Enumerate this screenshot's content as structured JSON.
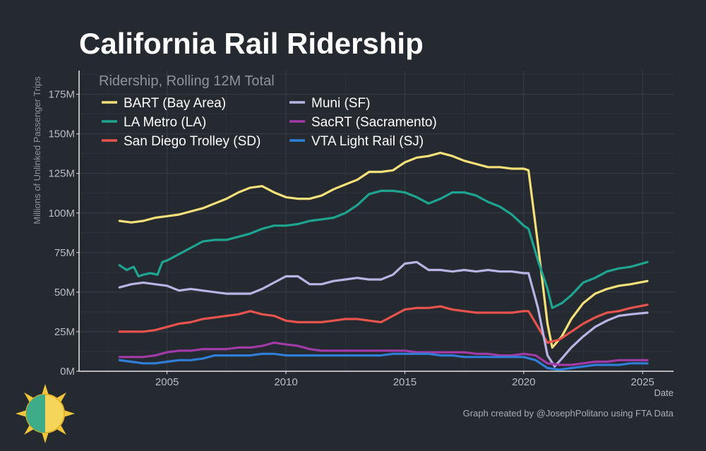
{
  "header": {
    "title": "California Rail Ridership"
  },
  "footer": {
    "credit": "Graph created by @JosephPolitano using FTA Data"
  },
  "colors": {
    "background": "#252930",
    "grid": "#3a3f47",
    "axis_text": "#b9bdc3",
    "axis_line": "#e6e6e6"
  },
  "chart_data": {
    "type": "line",
    "title": "California Rail Ridership",
    "subtitle": "Ridership, Rolling 12M Total",
    "xlabel": "Date",
    "ylabel": "Millions of Unlinked Passenger Trips",
    "xlim": [
      2001.3,
      2026.3
    ],
    "ylim": [
      0,
      190
    ],
    "xticks": [
      2005,
      2010,
      2015,
      2020,
      2025
    ],
    "xtick_labels": [
      "2005",
      "2010",
      "2015",
      "2020",
      "2025"
    ],
    "yticks": [
      0,
      25,
      50,
      75,
      100,
      125,
      150,
      175
    ],
    "ytick_labels": [
      "0M",
      "25M",
      "50M",
      "75M",
      "100M",
      "125M",
      "150M",
      "175M"
    ],
    "grid": true,
    "legend_position": "top-left",
    "series": [
      {
        "name": "BART (Bay Area)",
        "color": "#f5e07a",
        "x": [
          2003.0,
          2003.5,
          2004.0,
          2004.5,
          2005.0,
          2005.5,
          2006.0,
          2006.5,
          2007.0,
          2007.5,
          2008.0,
          2008.5,
          2009.0,
          2009.5,
          2010.0,
          2010.5,
          2011.0,
          2011.5,
          2012.0,
          2012.5,
          2013.0,
          2013.5,
          2014.0,
          2014.5,
          2015.0,
          2015.5,
          2016.0,
          2016.5,
          2017.0,
          2017.5,
          2018.0,
          2018.5,
          2019.0,
          2019.5,
          2020.0,
          2020.2,
          2020.6,
          2021.0,
          2021.2,
          2021.6,
          2022.0,
          2022.5,
          2023.0,
          2023.5,
          2024.0,
          2024.5,
          2025.2
        ],
        "y": [
          95,
          94,
          95,
          97,
          98,
          99,
          101,
          103,
          106,
          109,
          113,
          116,
          117,
          113,
          110,
          109,
          109,
          111,
          115,
          118,
          121,
          126,
          126,
          127,
          132,
          135,
          136,
          138,
          136,
          133,
          131,
          129,
          129,
          128,
          128,
          127,
          80,
          30,
          15,
          22,
          33,
          43,
          49,
          52,
          54,
          55,
          57
        ]
      },
      {
        "name": "LA Metro (LA)",
        "color": "#1ea592",
        "x": [
          2003.0,
          2003.3,
          2003.6,
          2003.8,
          2004.0,
          2004.3,
          2004.6,
          2004.8,
          2005.0,
          2005.5,
          2006.0,
          2006.5,
          2007.0,
          2007.5,
          2008.0,
          2008.5,
          2009.0,
          2009.5,
          2010.0,
          2010.5,
          2011.0,
          2011.5,
          2012.0,
          2012.5,
          2013.0,
          2013.5,
          2014.0,
          2014.5,
          2015.0,
          2015.5,
          2016.0,
          2016.5,
          2017.0,
          2017.5,
          2018.0,
          2018.5,
          2019.0,
          2019.5,
          2020.0,
          2020.2,
          2020.6,
          2021.0,
          2021.2,
          2021.6,
          2022.0,
          2022.5,
          2023.0,
          2023.5,
          2024.0,
          2024.5,
          2025.2
        ],
        "y": [
          67,
          64,
          66,
          60,
          61,
          62,
          61,
          69,
          70,
          74,
          78,
          82,
          83,
          83,
          85,
          87,
          90,
          92,
          92,
          93,
          95,
          96,
          97,
          100,
          105,
          112,
          114,
          114,
          113,
          110,
          106,
          109,
          113,
          113,
          111,
          107,
          104,
          99,
          92,
          90,
          70,
          52,
          40,
          43,
          48,
          56,
          59,
          63,
          65,
          66,
          69
        ]
      },
      {
        "name": "San Diego Trolley (SD)",
        "color": "#e8534d",
        "x": [
          2003.0,
          2003.5,
          2004.0,
          2004.5,
          2005.0,
          2005.5,
          2006.0,
          2006.5,
          2007.0,
          2007.5,
          2008.0,
          2008.5,
          2009.0,
          2009.5,
          2010.0,
          2010.5,
          2011.0,
          2011.5,
          2012.0,
          2012.5,
          2013.0,
          2013.5,
          2014.0,
          2014.5,
          2015.0,
          2015.5,
          2016.0,
          2016.5,
          2017.0,
          2017.5,
          2018.0,
          2018.5,
          2019.0,
          2019.5,
          2020.0,
          2020.2,
          2020.6,
          2021.0,
          2021.5,
          2022.0,
          2022.5,
          2023.0,
          2023.5,
          2024.0,
          2024.5,
          2025.2
        ],
        "y": [
          25,
          25,
          25,
          26,
          28,
          30,
          31,
          33,
          34,
          35,
          36,
          38,
          36,
          35,
          32,
          31,
          31,
          31,
          32,
          33,
          33,
          32,
          31,
          35,
          39,
          40,
          40,
          41,
          39,
          38,
          37,
          37,
          37,
          37,
          38,
          38,
          28,
          18,
          20,
          25,
          30,
          34,
          37,
          38,
          40,
          42
        ]
      },
      {
        "name": "Muni (SF)",
        "color": "#b8b4e4",
        "x": [
          2003.0,
          2003.5,
          2004.0,
          2004.5,
          2005.0,
          2005.5,
          2006.0,
          2006.5,
          2007.0,
          2007.5,
          2008.0,
          2008.5,
          2009.0,
          2009.5,
          2010.0,
          2010.5,
          2011.0,
          2011.5,
          2012.0,
          2012.5,
          2013.0,
          2013.5,
          2014.0,
          2014.5,
          2015.0,
          2015.5,
          2016.0,
          2016.5,
          2017.0,
          2017.5,
          2018.0,
          2018.5,
          2019.0,
          2019.5,
          2020.0,
          2020.2,
          2020.6,
          2021.0,
          2021.3,
          2021.6,
          2022.0,
          2022.5,
          2023.0,
          2023.5,
          2024.0,
          2024.5,
          2025.2
        ],
        "y": [
          53,
          55,
          56,
          55,
          54,
          51,
          52,
          51,
          50,
          49,
          49,
          49,
          52,
          56,
          60,
          60,
          55,
          55,
          57,
          58,
          59,
          58,
          58,
          61,
          68,
          69,
          64,
          64,
          63,
          64,
          63,
          64,
          63,
          63,
          62,
          62,
          40,
          10,
          3,
          8,
          15,
          22,
          28,
          32,
          35,
          36,
          37
        ]
      },
      {
        "name": "SacRT (Sacramento)",
        "color": "#a23aa8",
        "x": [
          2003.0,
          2003.5,
          2004.0,
          2004.5,
          2005.0,
          2005.5,
          2006.0,
          2006.5,
          2007.0,
          2007.5,
          2008.0,
          2008.5,
          2009.0,
          2009.5,
          2010.0,
          2010.5,
          2011.0,
          2011.5,
          2012.0,
          2012.5,
          2013.0,
          2013.5,
          2014.0,
          2014.5,
          2015.0,
          2015.5,
          2016.0,
          2016.5,
          2017.0,
          2017.5,
          2018.0,
          2018.5,
          2019.0,
          2019.5,
          2020.0,
          2020.5,
          2021.0,
          2021.5,
          2022.0,
          2022.5,
          2023.0,
          2023.5,
          2024.0,
          2024.5,
          2025.2
        ],
        "y": [
          9,
          9,
          9,
          10,
          12,
          13,
          13,
          14,
          14,
          14,
          15,
          15,
          16,
          18,
          17,
          16,
          14,
          13,
          13,
          13,
          13,
          13,
          13,
          13,
          13,
          12,
          12,
          12,
          12,
          12,
          11,
          11,
          10,
          10,
          11,
          10,
          5,
          4,
          4,
          5,
          6,
          6,
          7,
          7,
          7
        ]
      },
      {
        "name": "VTA Light Rail (SJ)",
        "color": "#2f7fd8",
        "x": [
          2003.0,
          2003.5,
          2004.0,
          2004.5,
          2005.0,
          2005.5,
          2006.0,
          2006.5,
          2007.0,
          2007.5,
          2008.0,
          2008.5,
          2009.0,
          2009.5,
          2010.0,
          2010.5,
          2011.0,
          2011.5,
          2012.0,
          2012.5,
          2013.0,
          2013.5,
          2014.0,
          2014.5,
          2015.0,
          2015.5,
          2016.0,
          2016.5,
          2017.0,
          2017.5,
          2018.0,
          2018.5,
          2019.0,
          2019.5,
          2020.0,
          2020.5,
          2021.0,
          2021.5,
          2022.0,
          2022.5,
          2023.0,
          2023.5,
          2024.0,
          2024.5,
          2025.2
        ],
        "y": [
          7,
          6,
          5,
          5,
          6,
          7,
          7,
          8,
          10,
          10,
          10,
          10,
          11,
          11,
          10,
          10,
          10,
          10,
          10,
          10,
          10,
          10,
          10,
          11,
          11,
          11,
          11,
          10,
          10,
          9,
          9,
          9,
          9,
          9,
          9,
          7,
          2,
          1,
          2,
          3,
          4,
          4,
          4,
          5,
          5
        ]
      }
    ]
  }
}
